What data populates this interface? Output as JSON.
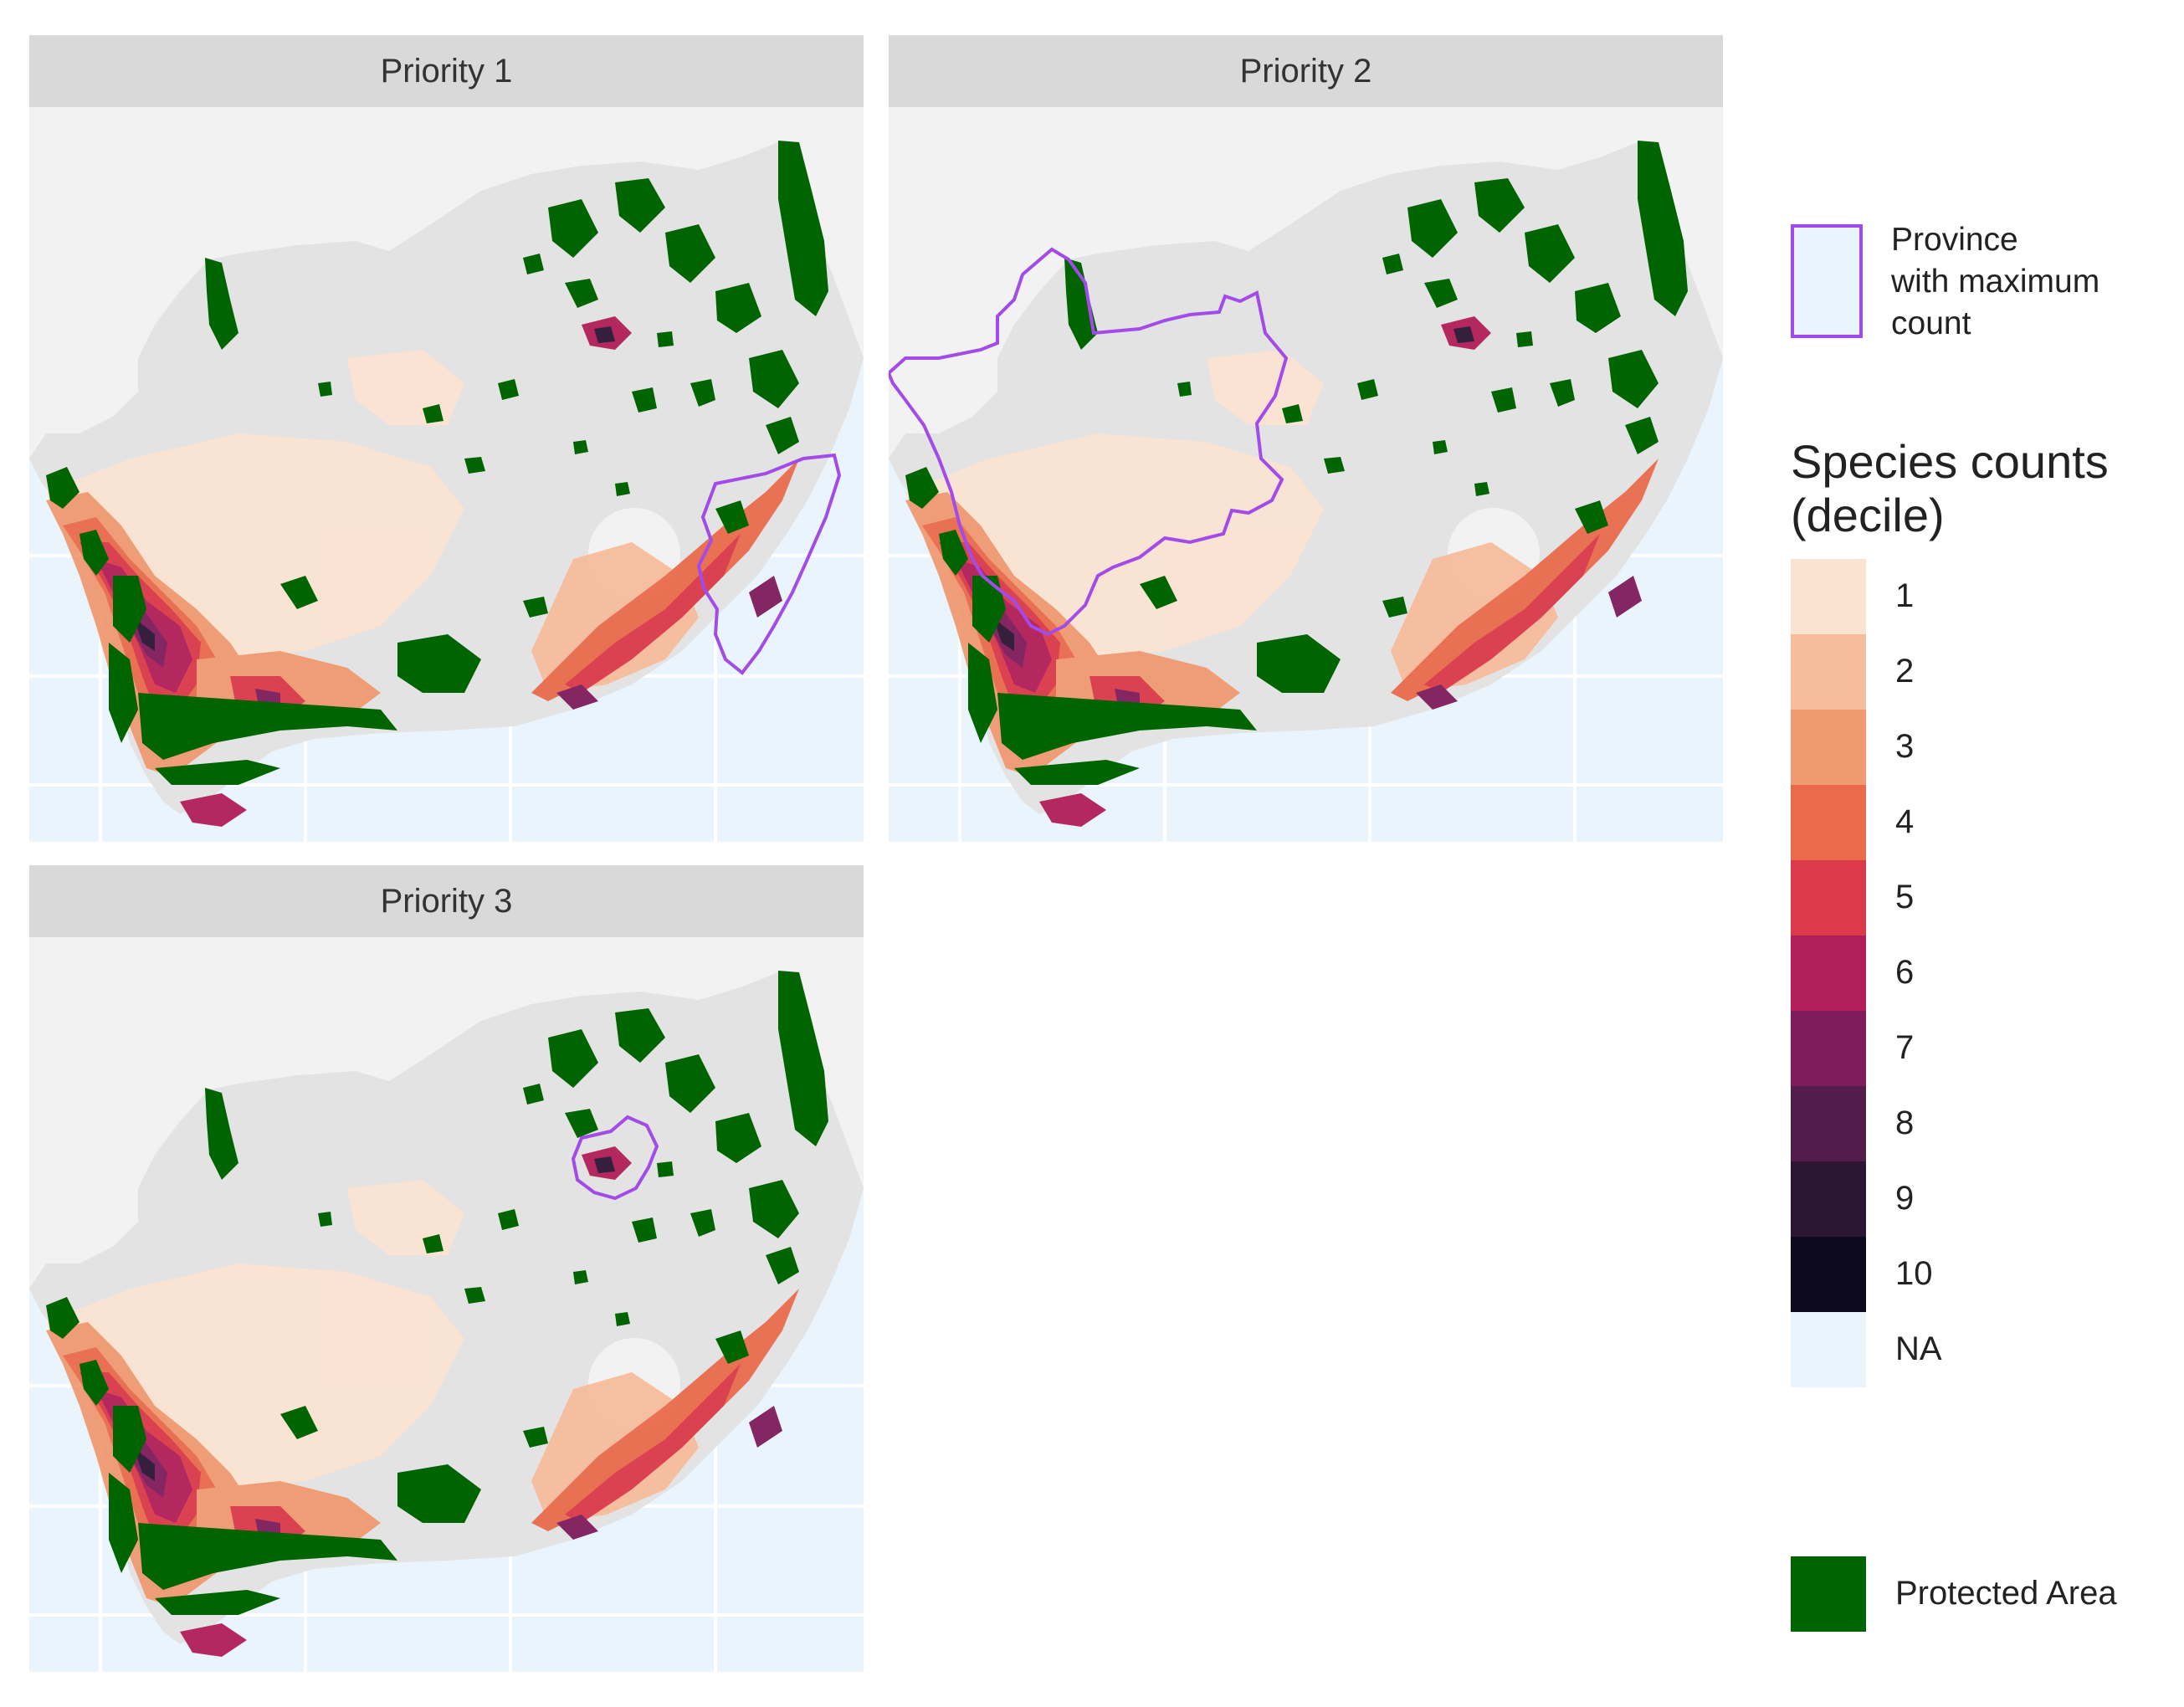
{
  "panels": [
    {
      "id": "p1",
      "title": "Priority 1"
    },
    {
      "id": "p2",
      "title": "Priority 2"
    },
    {
      "id": "p3",
      "title": "Priority 3"
    }
  ],
  "legend": {
    "province": {
      "label_line1": "Province",
      "label_line2": "with maximum",
      "label_line3": "count"
    },
    "species_title_line1": "Species counts",
    "species_title_line2": "(decile)",
    "deciles": [
      {
        "label": "1",
        "color": "#fbe3d2"
      },
      {
        "label": "2",
        "color": "#f6bd9c"
      },
      {
        "label": "3",
        "color": "#f09a72"
      },
      {
        "label": "4",
        "color": "#ea6b4c"
      },
      {
        "label": "5",
        "color": "#db3a4a"
      },
      {
        "label": "6",
        "color": "#b21e5a"
      },
      {
        "label": "7",
        "color": "#7f1c5c"
      },
      {
        "label": "8",
        "color": "#521d4a"
      },
      {
        "label": "9",
        "color": "#2b1634"
      },
      {
        "label": "10",
        "color": "#0c0a1c"
      }
    ],
    "na": {
      "label": "NA",
      "color": "#eaf4fc"
    },
    "protected": {
      "label": "Protected Area",
      "color": "#006400"
    }
  },
  "colors": {
    "strip": "#d9d9d9",
    "land": "#e3e3e3",
    "plot_bg": "#f2f2f2",
    "sea": "#eaf4fc",
    "protected": "#006400",
    "province_outline": "#a24be8"
  }
}
